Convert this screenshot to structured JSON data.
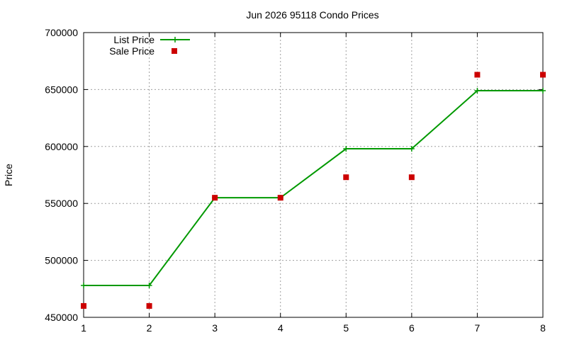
{
  "chart_data": {
    "type": "line",
    "title": "Jun 2026 95118 Condo Prices",
    "xlabel": "",
    "ylabel": "Price",
    "x": [
      1,
      2,
      3,
      4,
      5,
      6,
      7,
      8
    ],
    "xlim": [
      1,
      8
    ],
    "ylim": [
      450000,
      700000
    ],
    "xticks": [
      "1",
      "2",
      "3",
      "4",
      "5",
      "6",
      "7",
      "8"
    ],
    "yticks": [
      "450000",
      "500000",
      "550000",
      "600000",
      "650000",
      "700000"
    ],
    "ytick_values": [
      450000,
      500000,
      550000,
      600000,
      650000,
      700000
    ],
    "grid": true,
    "legend_position": "top-left",
    "series": [
      {
        "name": "List Price",
        "style": "line+cross",
        "color": "#009900",
        "values": [
          478000,
          478000,
          555000,
          555000,
          598000,
          598000,
          649000,
          649000
        ]
      },
      {
        "name": "Sale Price",
        "style": "points-square",
        "color": "#cc0000",
        "values": [
          460000,
          460000,
          555000,
          555000,
          573000,
          573000,
          663000,
          663000
        ]
      }
    ]
  }
}
